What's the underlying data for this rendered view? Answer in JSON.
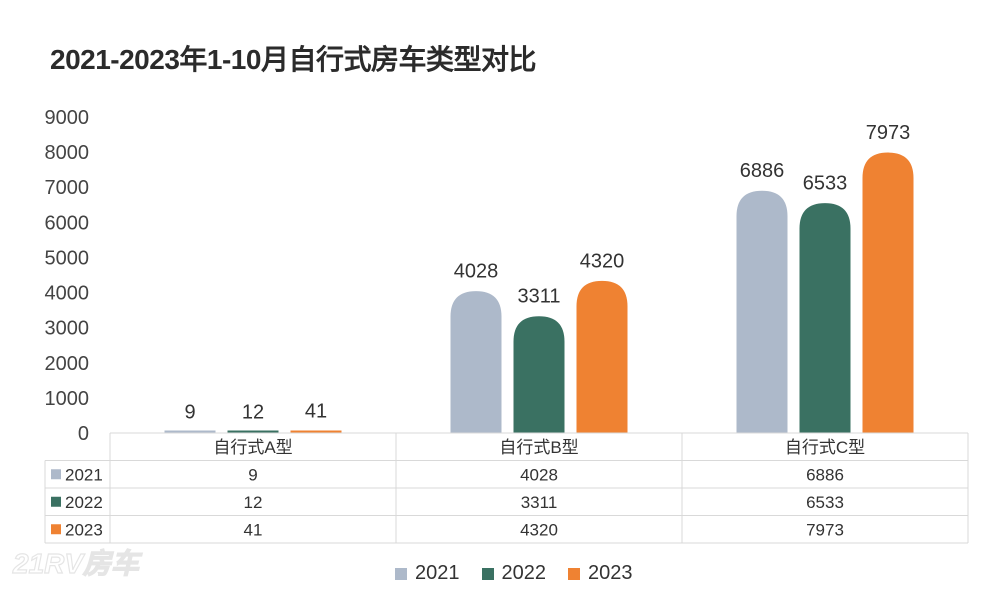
{
  "chart_data": {
    "type": "bar",
    "title": "2021-2023年1-10月自行式房车类型对比",
    "categories": [
      "自行式A型",
      "自行式B型",
      "自行式C型"
    ],
    "series": [
      {
        "name": "2021",
        "color": "#adb9ca",
        "values": [
          9,
          4028,
          6886
        ]
      },
      {
        "name": "2022",
        "color": "#3a7162",
        "values": [
          12,
          3311,
          6533
        ]
      },
      {
        "name": "2023",
        "color": "#ef8232",
        "values": [
          41,
          4320,
          7973
        ]
      }
    ],
    "ylim": [
      0,
      9000
    ],
    "yticks": [
      0,
      1000,
      2000,
      3000,
      4000,
      5000,
      6000,
      7000,
      8000,
      9000
    ],
    "legend": "bottom",
    "data_table": true
  }
}
